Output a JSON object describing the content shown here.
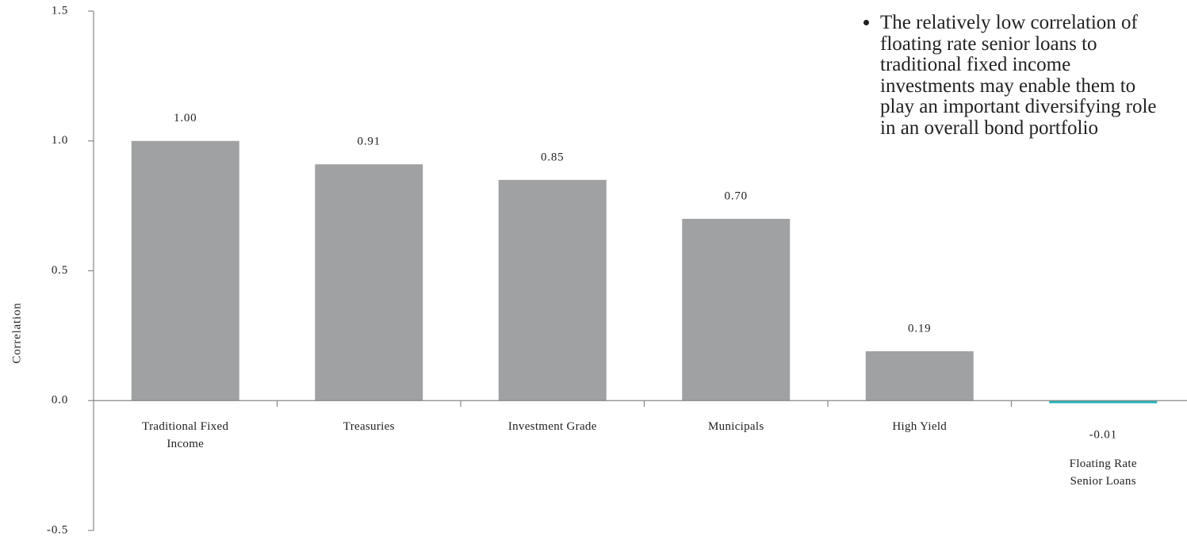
{
  "chart_data": {
    "type": "bar",
    "y_label": "Correlation",
    "categories": [
      "Traditional Fixed Income",
      "Treasuries",
      "Investment Grade",
      "Municipals",
      "High Yield",
      "Floating Rate Senior Loans"
    ],
    "values": [
      1.0,
      0.91,
      0.85,
      0.7,
      0.19,
      -0.01
    ],
    "value_labels": [
      "1.00",
      "0.91",
      "0.85",
      "0.70",
      "0.19",
      "-0.01"
    ],
    "colors": [
      "#a0a1a3",
      "#a0a1a3",
      "#a0a1a3",
      "#a0a1a3",
      "#a0a1a3",
      "#1fb5b8"
    ],
    "ylim": [
      -0.5,
      1.5
    ],
    "yticks": [
      {
        "value": -0.5,
        "label": "-0.5"
      },
      {
        "value": 0,
        "label": "0.0"
      },
      {
        "value": 0.5,
        "label": "0.5"
      },
      {
        "value": 1,
        "label": "1.0"
      },
      {
        "value": 1.5,
        "label": "1.5"
      }
    ],
    "annotation": "The relatively low correlation of floating rate senior loans to traditional fixed income investments may enable them to play an important diversifying role in an overall bond portfolio"
  }
}
